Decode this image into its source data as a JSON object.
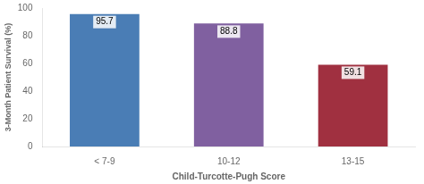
{
  "chart_data": {
    "type": "bar",
    "categories": [
      "< 7-9",
      "10-12",
      "13-15"
    ],
    "values": [
      95.7,
      88.8,
      59.1
    ],
    "colors": [
      "#4A7DB5",
      "#8060A0",
      "#A03040"
    ],
    "xlabel": "Child-Turcotte-Pugh Score",
    "ylabel": "3-Month Patient Survival (%)",
    "ylim": [
      0,
      100
    ],
    "yticks": [
      0,
      20,
      40,
      60,
      80,
      100
    ],
    "grid": false,
    "data_labels": true
  }
}
